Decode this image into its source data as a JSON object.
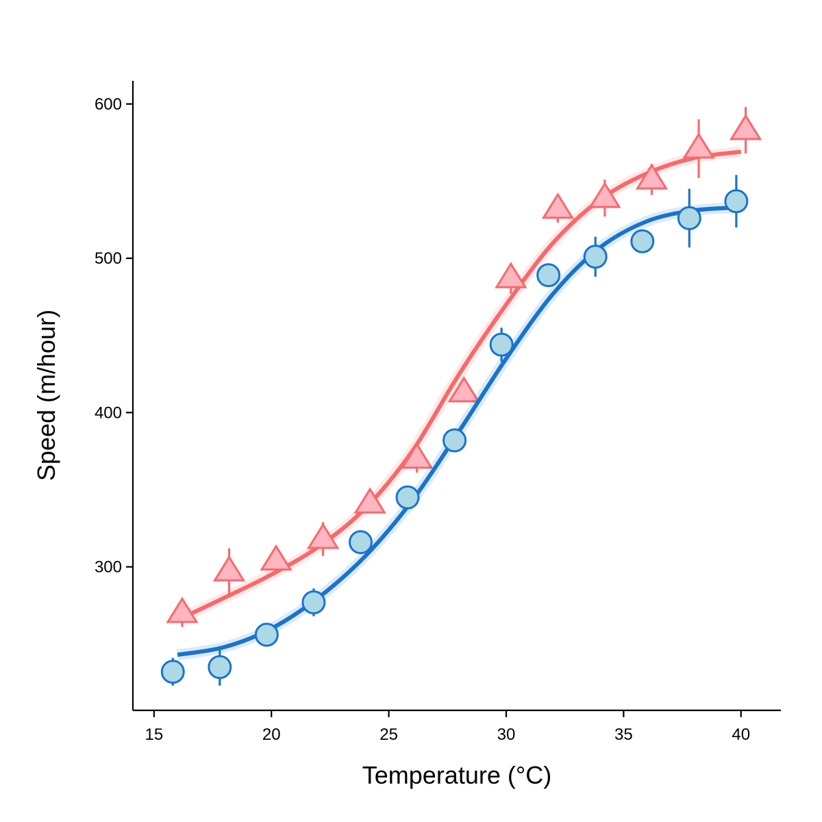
{
  "chart_data": {
    "type": "scatter",
    "title": "",
    "xlabel": "Temperature (°C)",
    "ylabel": "Speed (m/hour)",
    "xlim": [
      14.1,
      41.7
    ],
    "ylim": [
      207,
      615
    ],
    "x_ticks": [
      15,
      20,
      25,
      30,
      35,
      40
    ],
    "y_ticks": [
      300,
      400,
      500,
      600
    ],
    "grid": false,
    "legend": "none",
    "series": [
      {
        "marker": "triangle",
        "color": "#f8696b",
        "fill": "#ffb6c1",
        "points": [
          {
            "x": 16.2,
            "y": 270,
            "err": 9
          },
          {
            "x": 18.2,
            "y": 297,
            "err": 15
          },
          {
            "x": 20.2,
            "y": 304,
            "err": 6
          },
          {
            "x": 22.2,
            "y": 318,
            "err": 11
          },
          {
            "x": 24.2,
            "y": 341,
            "err": 6
          },
          {
            "x": 26.2,
            "y": 370,
            "err": 9
          },
          {
            "x": 28.2,
            "y": 413,
            "err": 6
          },
          {
            "x": 30.2,
            "y": 487,
            "err": 10
          },
          {
            "x": 32.2,
            "y": 532,
            "err": 9
          },
          {
            "x": 34.2,
            "y": 539,
            "err": 12
          },
          {
            "x": 36.2,
            "y": 551,
            "err": 10
          },
          {
            "x": 38.2,
            "y": 571,
            "err": 19
          },
          {
            "x": 40.2,
            "y": 583,
            "err": 15
          }
        ],
        "fit": [
          [
            16.2,
            267
          ],
          [
            18,
            280
          ],
          [
            20,
            295
          ],
          [
            22,
            313
          ],
          [
            24,
            338
          ],
          [
            26,
            375
          ],
          [
            28,
            425
          ],
          [
            30,
            470
          ],
          [
            32,
            510
          ],
          [
            34,
            538
          ],
          [
            36,
            555
          ],
          [
            38,
            565
          ],
          [
            40,
            569
          ]
        ]
      },
      {
        "marker": "circle",
        "color": "#1874cd",
        "fill": "#add8e6",
        "points": [
          {
            "x": 15.8,
            "y": 232,
            "err": 9
          },
          {
            "x": 17.8,
            "y": 235,
            "err": 12
          },
          {
            "x": 19.8,
            "y": 256,
            "err": 5
          },
          {
            "x": 21.8,
            "y": 277,
            "err": 9
          },
          {
            "x": 23.8,
            "y": 316,
            "err": 6
          },
          {
            "x": 25.8,
            "y": 345,
            "err": 6
          },
          {
            "x": 27.8,
            "y": 382,
            "err": 6
          },
          {
            "x": 29.8,
            "y": 444,
            "err": 11
          },
          {
            "x": 31.8,
            "y": 489,
            "err": 5
          },
          {
            "x": 33.8,
            "y": 501,
            "err": 13
          },
          {
            "x": 35.8,
            "y": 511,
            "err": 5
          },
          {
            "x": 37.8,
            "y": 526,
            "err": 19
          },
          {
            "x": 39.8,
            "y": 537,
            "err": 17
          }
        ],
        "fit": [
          [
            16,
            243
          ],
          [
            18,
            248
          ],
          [
            20,
            260
          ],
          [
            22,
            280
          ],
          [
            24,
            307
          ],
          [
            26,
            343
          ],
          [
            28,
            388
          ],
          [
            30,
            435
          ],
          [
            32,
            477
          ],
          [
            34,
            507
          ],
          [
            36,
            524
          ],
          [
            38,
            531
          ],
          [
            40,
            533
          ]
        ]
      }
    ]
  }
}
